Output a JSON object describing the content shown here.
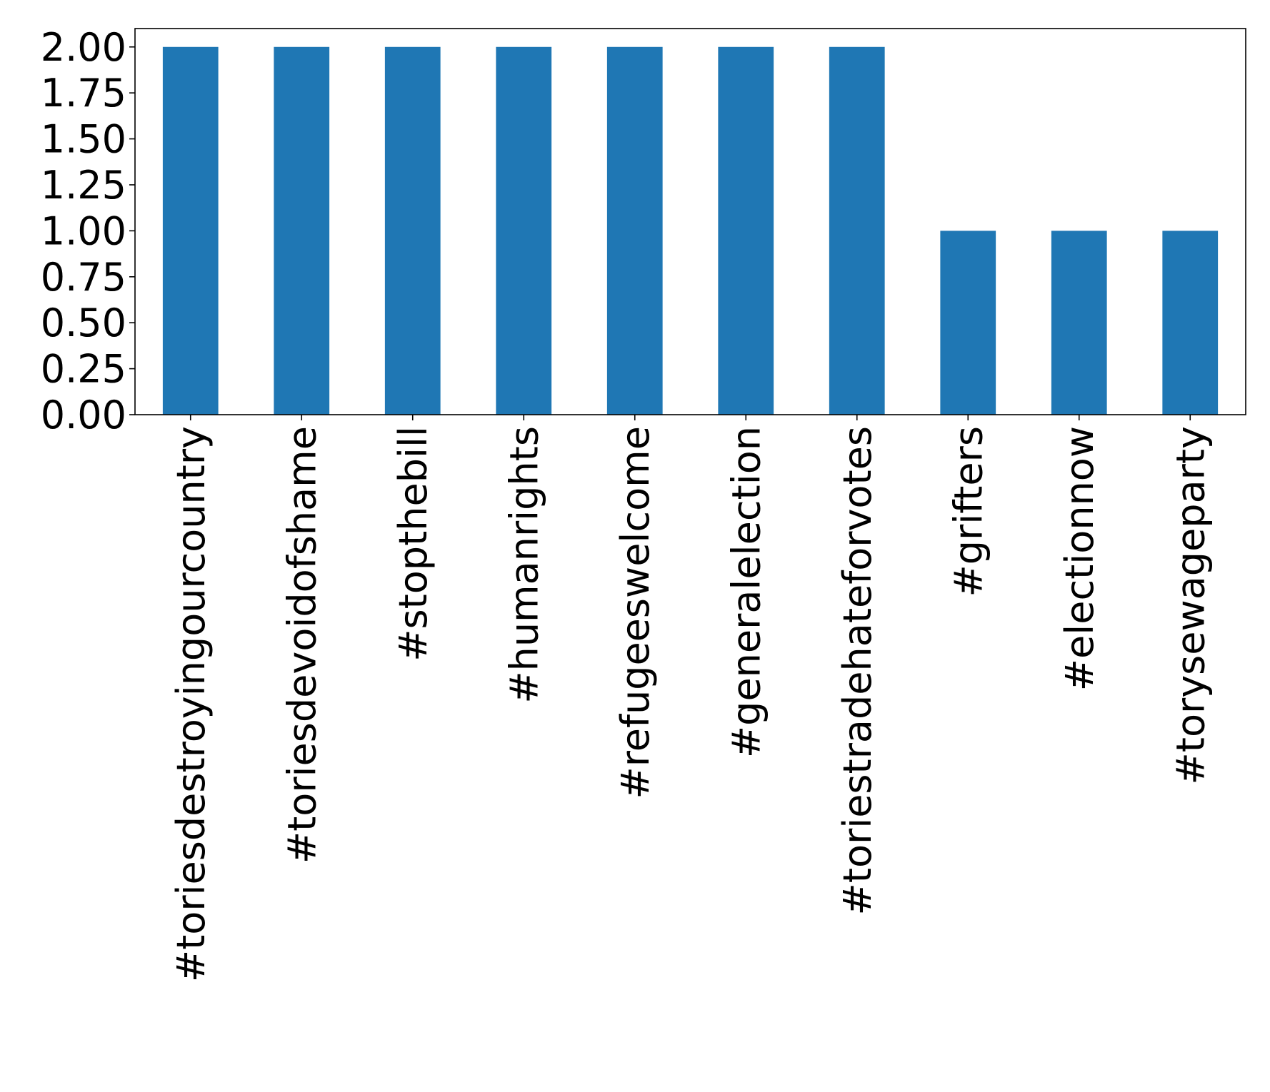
{
  "chart_data": {
    "type": "bar",
    "title": "",
    "xlabel": "",
    "ylabel": "",
    "categories": [
      "#toriesdestroyingourcountry",
      "#toriesdevoidofshame",
      "#stopthebill",
      "#humanrights",
      "#refugeeswelcome",
      "#generalelection",
      "#toriestradehateforvotes",
      "#grifters",
      "#electionnow",
      "#torysewageparty"
    ],
    "values": [
      2,
      2,
      2,
      2,
      2,
      2,
      2,
      1,
      1,
      1
    ],
    "ylim": [
      0,
      2.1
    ],
    "yticks": [
      "0.00",
      "0.25",
      "0.50",
      "0.75",
      "1.00",
      "1.25",
      "1.50",
      "1.75",
      "2.00"
    ],
    "bar_color": "#1f77b4",
    "grid": false,
    "legend": "none"
  }
}
